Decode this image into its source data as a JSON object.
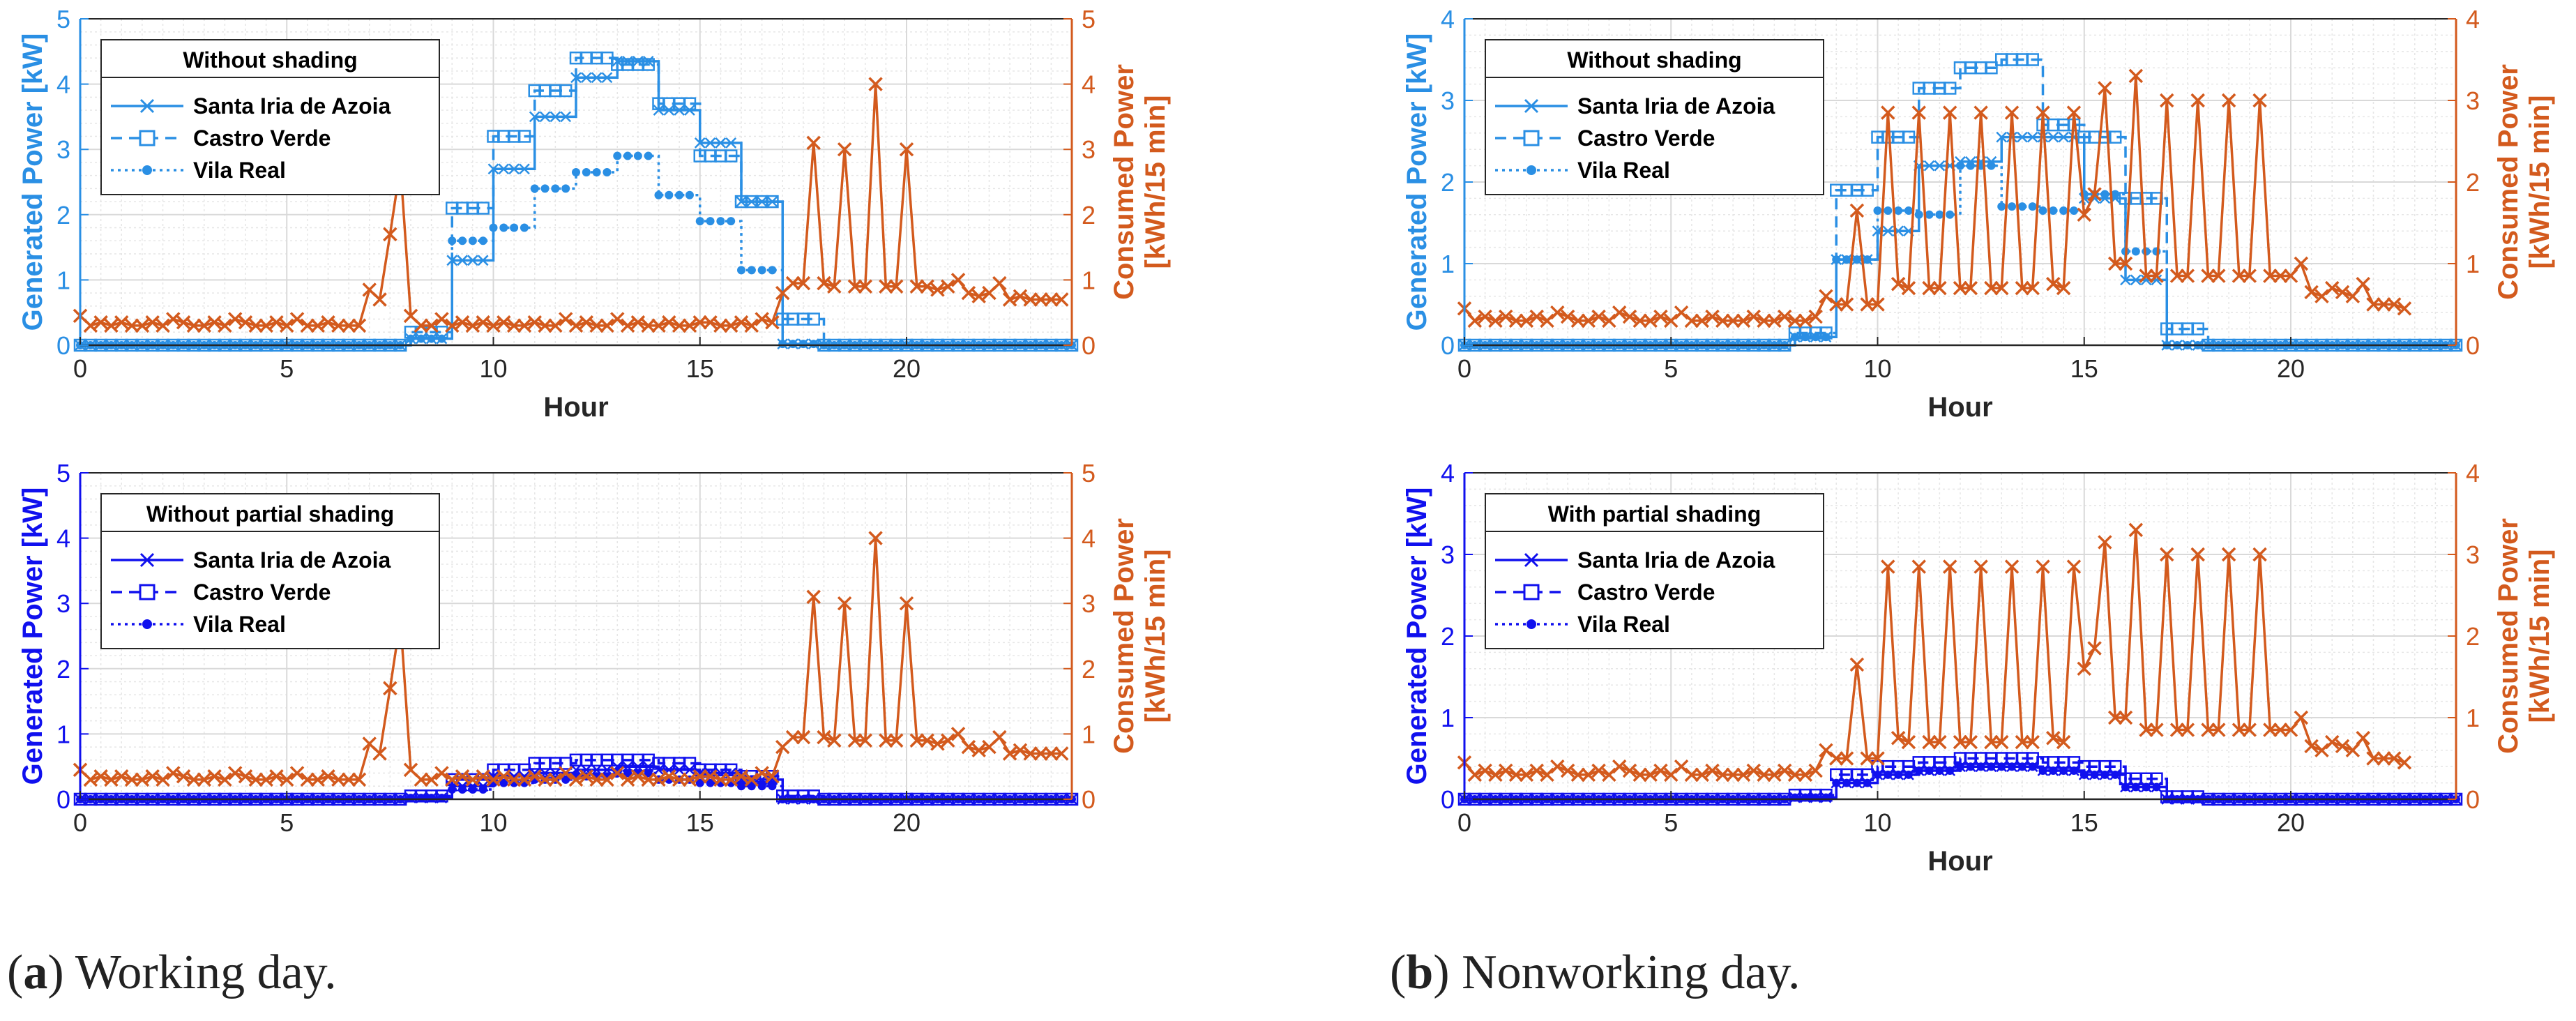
{
  "colors": {
    "light_blue": "#2a8fe4",
    "dark_blue": "#1010ee",
    "orange": "#d35a1d",
    "grid": "#d9d9d9"
  },
  "common": {
    "xlabel": "Hour",
    "y_left_label": "Generated Power [kW]",
    "y_right_label_line1": "Consumed Power",
    "y_right_label_line2": "[kWh/15 min]",
    "series_names": [
      "Santa Iria de Azoia",
      "Castro Verde",
      "Vila Real"
    ],
    "xticks": [
      0,
      5,
      10,
      15,
      20
    ],
    "xlim": [
      0,
      24
    ]
  },
  "captions": [
    {
      "letter": "a",
      "paren_open": "(",
      "paren_close": ")",
      "text": " Working day."
    },
    {
      "letter": "b",
      "paren_open": "(",
      "paren_close": ")",
      "text": " Nonworking day."
    }
  ],
  "chart_data": [
    {
      "id": "working-no-shading",
      "type": "line",
      "legend_title": "Without shading",
      "color_key": "light_blue",
      "ylim": [
        0,
        5
      ],
      "yticks": [
        0,
        1,
        2,
        3,
        4,
        5
      ],
      "xlabel_visible": true,
      "generation": [
        {
          "name": "Santa Iria de Azoia",
          "marker": "x",
          "dash": "solid",
          "hourly": [
            0,
            0,
            0,
            0,
            0,
            0,
            0,
            0,
            0.1,
            1.3,
            2.7,
            3.5,
            4.1,
            4.35,
            3.6,
            3.1,
            2.2,
            0.02,
            0,
            0,
            0,
            0,
            0,
            0,
            0
          ]
        },
        {
          "name": "Castro Verde",
          "marker": "square",
          "dash": "dashed",
          "hourly": [
            0,
            0,
            0,
            0,
            0,
            0,
            0,
            0,
            0.2,
            2.1,
            3.2,
            3.9,
            4.4,
            4.3,
            3.7,
            2.9,
            2.2,
            0.4,
            0,
            0,
            0,
            0,
            0,
            0,
            0
          ]
        },
        {
          "name": "Vila Real",
          "marker": "dot",
          "dash": "dotted",
          "hourly": [
            0,
            0,
            0,
            0,
            0,
            0,
            0,
            0,
            0.1,
            1.6,
            1.8,
            2.4,
            2.65,
            2.9,
            2.3,
            1.9,
            1.15,
            0.02,
            0,
            0,
            0,
            0,
            0,
            0,
            0
          ]
        }
      ],
      "consumption": {
        "name": "Consumed Power",
        "marker": "x",
        "values": [
          0.45,
          0.3,
          0.35,
          0.3,
          0.35,
          0.3,
          0.3,
          0.35,
          0.3,
          0.4,
          0.35,
          0.3,
          0.3,
          0.35,
          0.3,
          0.4,
          0.35,
          0.3,
          0.3,
          0.35,
          0.3,
          0.4,
          0.3,
          0.3,
          0.35,
          0.3,
          0.3,
          0.3,
          0.85,
          0.7,
          1.7,
          2.75,
          0.45,
          0.3,
          0.3,
          0.4,
          0.3,
          0.35,
          0.3,
          0.35,
          0.3,
          0.35,
          0.3,
          0.3,
          0.35,
          0.3,
          0.3,
          0.4,
          0.3,
          0.35,
          0.3,
          0.3,
          0.4,
          0.3,
          0.35,
          0.3,
          0.3,
          0.35,
          0.3,
          0.3,
          0.35,
          0.35,
          0.3,
          0.3,
          0.35,
          0.3,
          0.4,
          0.35,
          0.8,
          0.95,
          0.95,
          3.1,
          0.95,
          0.9,
          3.0,
          0.9,
          0.9,
          4.0,
          0.9,
          0.9,
          3.0,
          0.9,
          0.9,
          0.85,
          0.9,
          1.0,
          0.8,
          0.75,
          0.8,
          0.95,
          0.7,
          0.75,
          0.7,
          0.7,
          0.7,
          0.7
        ]
      }
    },
    {
      "id": "nonworking-no-shading",
      "type": "line",
      "legend_title": "Without shading",
      "color_key": "light_blue",
      "ylim": [
        0,
        4
      ],
      "yticks": [
        0,
        1,
        2,
        3,
        4
      ],
      "xlabel_visible": true,
      "generation": [
        {
          "name": "Santa Iria de Azoia",
          "marker": "x",
          "dash": "solid",
          "hourly": [
            0,
            0,
            0,
            0,
            0,
            0,
            0,
            0,
            0.1,
            1.05,
            1.4,
            2.2,
            2.25,
            2.55,
            2.55,
            1.8,
            0.8,
            0,
            0,
            0,
            0,
            0,
            0,
            0,
            0
          ]
        },
        {
          "name": "Castro Verde",
          "marker": "square",
          "dash": "dashed",
          "hourly": [
            0,
            0,
            0,
            0,
            0,
            0,
            0,
            0,
            0.15,
            1.9,
            2.55,
            3.15,
            3.4,
            3.5,
            2.7,
            2.55,
            1.8,
            0.2,
            0,
            0,
            0,
            0,
            0,
            0,
            0
          ]
        },
        {
          "name": "Vila Real",
          "marker": "dot",
          "dash": "dotted",
          "hourly": [
            0,
            0,
            0,
            0,
            0,
            0,
            0,
            0,
            0.1,
            1.05,
            1.65,
            1.6,
            2.2,
            1.7,
            1.65,
            1.85,
            1.15,
            0,
            0,
            0,
            0,
            0,
            0,
            0,
            0
          ]
        }
      ],
      "consumption": {
        "name": "Consumed Power",
        "marker": "x",
        "values": [
          0.45,
          0.3,
          0.35,
          0.3,
          0.35,
          0.3,
          0.3,
          0.35,
          0.3,
          0.4,
          0.35,
          0.3,
          0.3,
          0.35,
          0.3,
          0.4,
          0.35,
          0.3,
          0.3,
          0.35,
          0.3,
          0.4,
          0.3,
          0.3,
          0.35,
          0.3,
          0.3,
          0.3,
          0.35,
          0.3,
          0.3,
          0.35,
          0.3,
          0.3,
          0.35,
          0.6,
          0.5,
          0.5,
          1.65,
          0.5,
          0.5,
          2.85,
          0.75,
          0.7,
          2.85,
          0.7,
          0.7,
          2.85,
          0.7,
          0.7,
          2.85,
          0.7,
          0.7,
          2.85,
          0.7,
          0.7,
          2.85,
          0.75,
          0.7,
          2.85,
          1.6,
          1.85,
          3.15,
          1.0,
          1.0,
          3.3,
          0.85,
          0.85,
          3.0,
          0.85,
          0.85,
          3.0,
          0.85,
          0.85,
          3.0,
          0.85,
          0.85,
          3.0,
          0.85,
          0.85,
          0.85,
          1.0,
          0.65,
          0.6,
          0.7,
          0.65,
          0.6,
          0.75,
          0.5,
          0.5,
          0.5,
          0.45
        ]
      }
    },
    {
      "id": "working-partial-shading",
      "type": "line",
      "legend_title": "Without partial shading",
      "color_key": "dark_blue",
      "ylim": [
        0,
        5
      ],
      "yticks": [
        0,
        1,
        2,
        3,
        4,
        5
      ],
      "xlabel_visible": false,
      "generation": [
        {
          "name": "Santa Iria de Azoia",
          "marker": "x",
          "dash": "solid",
          "hourly": [
            0,
            0,
            0,
            0,
            0,
            0,
            0,
            0,
            0.02,
            0.2,
            0.35,
            0.4,
            0.45,
            0.5,
            0.45,
            0.4,
            0.3,
            0,
            0,
            0,
            0,
            0,
            0,
            0,
            0
          ]
        },
        {
          "name": "Castro Verde",
          "marker": "square",
          "dash": "dashed",
          "hourly": [
            0,
            0,
            0,
            0,
            0,
            0,
            0,
            0,
            0.05,
            0.3,
            0.45,
            0.55,
            0.6,
            0.6,
            0.55,
            0.45,
            0.35,
            0.05,
            0,
            0,
            0,
            0,
            0,
            0,
            0
          ]
        },
        {
          "name": "Vila Real",
          "marker": "dot",
          "dash": "dotted",
          "hourly": [
            0,
            0,
            0,
            0,
            0,
            0,
            0,
            0,
            0.02,
            0.15,
            0.25,
            0.3,
            0.35,
            0.4,
            0.3,
            0.25,
            0.2,
            0,
            0,
            0,
            0,
            0,
            0,
            0,
            0
          ]
        }
      ],
      "consumption": {
        "name": "Consumed Power",
        "marker": "x",
        "values": [
          0.45,
          0.3,
          0.35,
          0.3,
          0.35,
          0.3,
          0.3,
          0.35,
          0.3,
          0.4,
          0.35,
          0.3,
          0.3,
          0.35,
          0.3,
          0.4,
          0.35,
          0.3,
          0.3,
          0.35,
          0.3,
          0.4,
          0.3,
          0.3,
          0.35,
          0.3,
          0.3,
          0.3,
          0.85,
          0.7,
          1.7,
          2.75,
          0.45,
          0.3,
          0.3,
          0.4,
          0.3,
          0.35,
          0.3,
          0.35,
          0.3,
          0.35,
          0.3,
          0.3,
          0.35,
          0.3,
          0.3,
          0.4,
          0.3,
          0.35,
          0.3,
          0.3,
          0.4,
          0.3,
          0.35,
          0.3,
          0.3,
          0.35,
          0.3,
          0.3,
          0.35,
          0.35,
          0.3,
          0.3,
          0.35,
          0.3,
          0.4,
          0.35,
          0.8,
          0.95,
          0.95,
          3.1,
          0.95,
          0.9,
          3.0,
          0.9,
          0.9,
          4.0,
          0.9,
          0.9,
          3.0,
          0.9,
          0.9,
          0.85,
          0.9,
          1.0,
          0.8,
          0.75,
          0.8,
          0.95,
          0.7,
          0.75,
          0.7,
          0.7,
          0.7,
          0.7
        ]
      }
    },
    {
      "id": "nonworking-partial-shading",
      "type": "line",
      "legend_title": "With partial shading",
      "color_key": "dark_blue",
      "ylim": [
        0,
        4
      ],
      "yticks": [
        0,
        1,
        2,
        3,
        4
      ],
      "xlabel_visible": true,
      "generation": [
        {
          "name": "Santa Iria de Azoia",
          "marker": "x",
          "dash": "solid",
          "hourly": [
            0,
            0,
            0,
            0,
            0,
            0,
            0,
            0,
            0.02,
            0.2,
            0.3,
            0.35,
            0.4,
            0.4,
            0.35,
            0.3,
            0.15,
            0,
            0,
            0,
            0,
            0,
            0,
            0,
            0
          ]
        },
        {
          "name": "Castro Verde",
          "marker": "square",
          "dash": "dashed",
          "hourly": [
            0,
            0,
            0,
            0,
            0,
            0,
            0,
            0,
            0.05,
            0.3,
            0.4,
            0.45,
            0.5,
            0.5,
            0.45,
            0.4,
            0.25,
            0.03,
            0,
            0,
            0,
            0,
            0,
            0,
            0
          ]
        },
        {
          "name": "Vila Real",
          "marker": "dot",
          "dash": "dotted",
          "hourly": [
            0,
            0,
            0,
            0,
            0,
            0,
            0,
            0,
            0.02,
            0.2,
            0.3,
            0.35,
            0.4,
            0.4,
            0.35,
            0.3,
            0.15,
            0,
            0,
            0,
            0,
            0,
            0,
            0,
            0
          ]
        }
      ],
      "consumption": {
        "name": "Consumed Power",
        "marker": "x",
        "values": [
          0.45,
          0.3,
          0.35,
          0.3,
          0.35,
          0.3,
          0.3,
          0.35,
          0.3,
          0.4,
          0.35,
          0.3,
          0.3,
          0.35,
          0.3,
          0.4,
          0.35,
          0.3,
          0.3,
          0.35,
          0.3,
          0.4,
          0.3,
          0.3,
          0.35,
          0.3,
          0.3,
          0.3,
          0.35,
          0.3,
          0.3,
          0.35,
          0.3,
          0.3,
          0.35,
          0.6,
          0.5,
          0.5,
          1.65,
          0.5,
          0.5,
          2.85,
          0.75,
          0.7,
          2.85,
          0.7,
          0.7,
          2.85,
          0.7,
          0.7,
          2.85,
          0.7,
          0.7,
          2.85,
          0.7,
          0.7,
          2.85,
          0.75,
          0.7,
          2.85,
          1.6,
          1.85,
          3.15,
          1.0,
          1.0,
          3.3,
          0.85,
          0.85,
          3.0,
          0.85,
          0.85,
          3.0,
          0.85,
          0.85,
          3.0,
          0.85,
          0.85,
          3.0,
          0.85,
          0.85,
          0.85,
          1.0,
          0.65,
          0.6,
          0.7,
          0.65,
          0.6,
          0.75,
          0.5,
          0.5,
          0.5,
          0.45
        ]
      }
    }
  ]
}
